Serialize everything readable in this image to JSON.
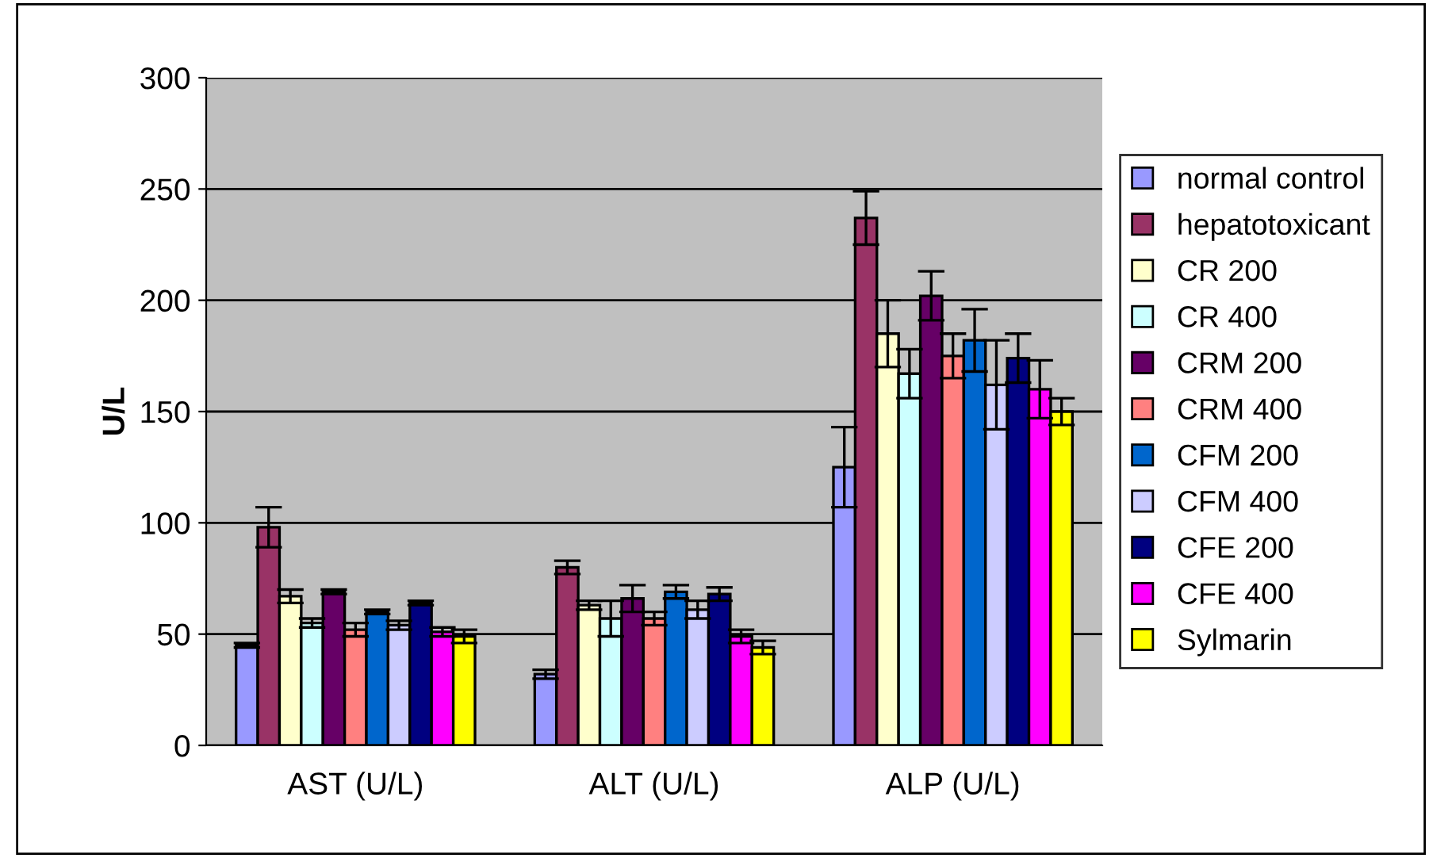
{
  "chart_data": {
    "type": "bar",
    "ylabel": "U/L",
    "categories": [
      "AST (U/L)",
      "ALT (U/L)",
      "ALP (U/L)"
    ],
    "ylim": [
      0,
      300
    ],
    "yticks": [
      0,
      50,
      100,
      150,
      200,
      250,
      300
    ],
    "grid": "y",
    "legend": "right",
    "series": [
      {
        "name": "normal control",
        "color": "#9999ff",
        "values": [
          45,
          32,
          125
        ],
        "errors": [
          1,
          2,
          18
        ]
      },
      {
        "name": "hepatotoxicant",
        "color": "#993366",
        "values": [
          98,
          80,
          237
        ],
        "errors": [
          9,
          3,
          12
        ]
      },
      {
        "name": "CR 200",
        "color": "#ffffcc",
        "values": [
          67,
          63,
          185
        ],
        "errors": [
          3,
          2,
          15
        ]
      },
      {
        "name": "CR 400",
        "color": "#ccffff",
        "values": [
          55,
          57,
          167
        ],
        "errors": [
          2,
          8,
          11
        ]
      },
      {
        "name": "CRM 200",
        "color": "#660066",
        "values": [
          69,
          66,
          202
        ],
        "errors": [
          1,
          6,
          11
        ]
      },
      {
        "name": "CRM 400",
        "color": "#ff8080",
        "values": [
          52,
          57,
          175
        ],
        "errors": [
          3,
          3,
          10
        ]
      },
      {
        "name": "CFM 200",
        "color": "#0066cc",
        "values": [
          60,
          69,
          182
        ],
        "errors": [
          1,
          3,
          14
        ]
      },
      {
        "name": "CFM 400",
        "color": "#ccccff",
        "values": [
          54,
          61,
          162
        ],
        "errors": [
          2,
          4,
          20
        ]
      },
      {
        "name": "CFE 200",
        "color": "#000080",
        "values": [
          64,
          68,
          174
        ],
        "errors": [
          1,
          3,
          11
        ]
      },
      {
        "name": "CFE 400",
        "color": "#ff00ff",
        "values": [
          51,
          49,
          160
        ],
        "errors": [
          2,
          3,
          13
        ]
      },
      {
        "name": "Sylmarin",
        "color": "#ffff00",
        "values": [
          49,
          44,
          150
        ],
        "errors": [
          3,
          3,
          6
        ]
      }
    ]
  }
}
